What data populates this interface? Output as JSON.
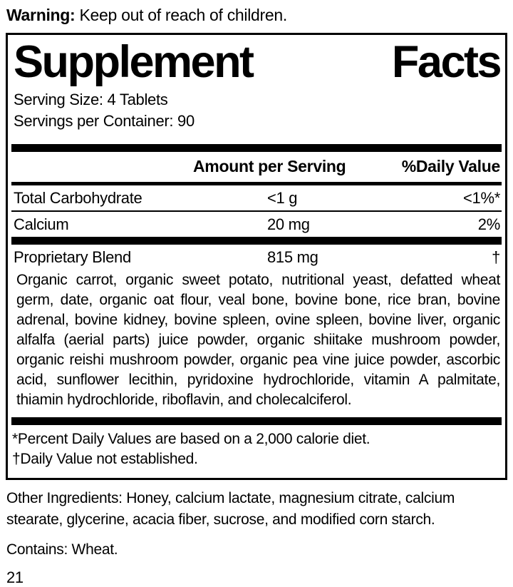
{
  "warning": {
    "label": "Warning:",
    "text": " Keep out of reach of children."
  },
  "panel": {
    "title_left": "Supplement",
    "title_right": "Facts",
    "serving_size": "Serving Size: 4 Tablets",
    "servings_per_container": "Servings per Container: 90",
    "header": {
      "amount": "Amount per Serving",
      "daily_value": "%Daily Value"
    },
    "rows": [
      {
        "name": "Total Carbohydrate",
        "amount": "<1 g",
        "dv": "<1%*"
      },
      {
        "name": "Calcium",
        "amount": "20 mg",
        "dv": "2%"
      },
      {
        "name": "Proprietary Blend",
        "amount": "815 mg",
        "dv": "†"
      }
    ],
    "blend_description": "Organic carrot, organic sweet potato, nutritional yeast, defatted wheat germ, date, organic oat flour, veal bone, bovine bone, rice bran, bovine adrenal, bovine kidney, bovine spleen, ovine spleen, bovine liver, organic alfalfa (aerial parts) juice powder, organic shiitake mushroom powder, organic reishi mushroom powder, organic pea vine juice powder, ascorbic acid, sunflower lecithin, pyridoxine hydrochloride, vitamin A palmitate, thiamin hydrochloride, riboflavin, and cholecalciferol.",
    "footnotes": [
      "*Percent Daily Values are based on a 2,000 calorie diet.",
      "†Daily Value not established."
    ]
  },
  "other_ingredients": "Other Ingredients: Honey, calcium lactate, magnesium citrate, calcium stearate, glycerine, acacia fiber, sucrose, and modified corn starch.",
  "contains": "Contains: Wheat.",
  "page_number": "21",
  "colors": {
    "ink": "#000000",
    "background": "#ffffff"
  }
}
